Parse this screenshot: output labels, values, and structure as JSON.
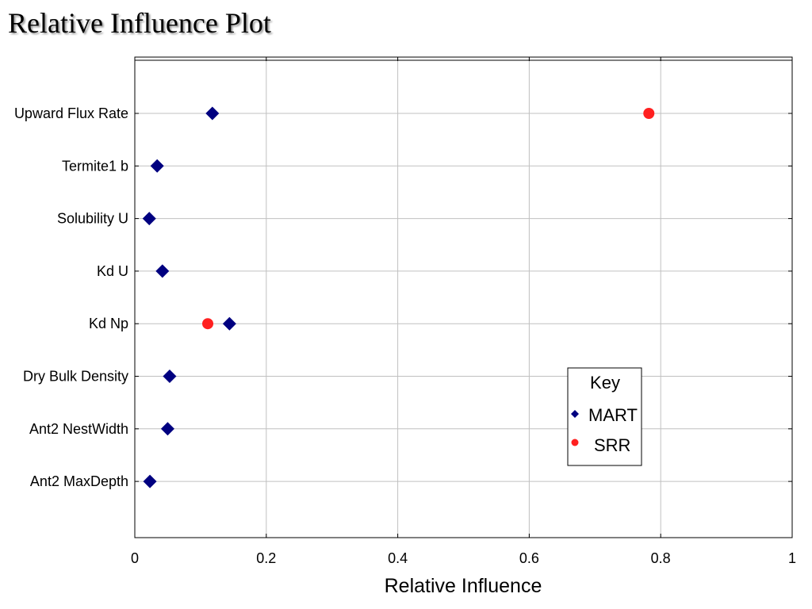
{
  "chart_data": {
    "type": "scatter",
    "title": "Relative Influence Plot",
    "xlabel": "Relative Influence",
    "ylabel": "",
    "xlim": [
      0,
      1
    ],
    "xticks": [
      "0",
      "0.2",
      "0.4",
      "0.6",
      "0.8",
      "1"
    ],
    "categories": [
      "Upward Flux Rate",
      "Termite1 b",
      "Solubility U",
      "Kd U",
      "Kd Np",
      "Dry Bulk Density",
      "Ant2 NestWidth",
      "Ant2 MaxDepth"
    ],
    "series": [
      {
        "name": "MART",
        "marker": "diamond",
        "color": "#000080",
        "values": [
          0.118,
          0.034,
          0.022,
          0.042,
          0.144,
          0.053,
          0.05,
          0.023
        ]
      },
      {
        "name": "SRR",
        "marker": "circle",
        "color": "#ff2020",
        "values": [
          0.782,
          null,
          null,
          null,
          0.111,
          null,
          null,
          null
        ]
      }
    ],
    "legend": {
      "title": "Key",
      "position": "lower-right"
    },
    "grid": true
  }
}
